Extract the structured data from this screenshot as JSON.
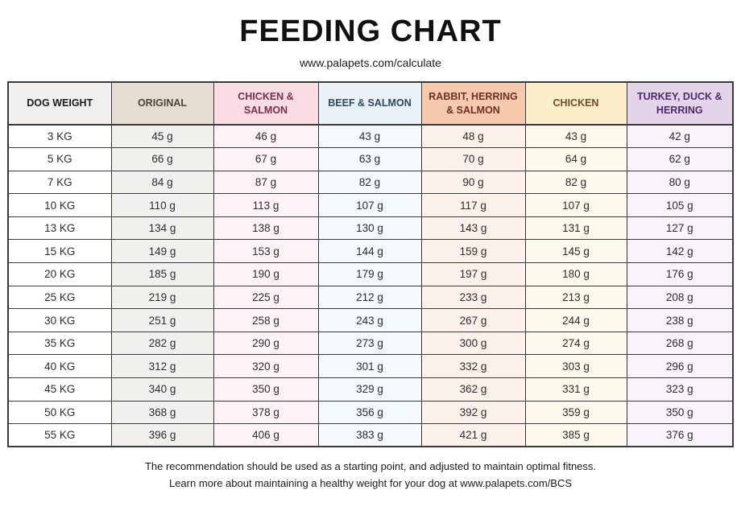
{
  "title": "FEEDING CHART",
  "subtitle": "www.palapets.com/calculate",
  "footer": {
    "line1": "The recommendation should be used as a starting point, and adjusted to maintain optimal fitness.",
    "line2": "Learn more about maintaining a healthy weight for your dog at www.palapets.com/BCS"
  },
  "chart_data": {
    "type": "table",
    "unit": "g",
    "weight_column": {
      "id": "dog-weight",
      "label": "DOG WEIGHT",
      "header_bg": "#f1f0ee",
      "header_text": "#1c1c1c",
      "cell_bg": "#ffffff"
    },
    "columns": [
      {
        "id": "original",
        "label": "ORIGINAL",
        "header_bg": "#e6ddd2",
        "header_text": "#4a443e",
        "cell_bg": "#f2f0ed"
      },
      {
        "id": "chicken-salmon",
        "label": "CHICKEN & SALMON",
        "header_bg": "#fadce5",
        "header_text": "#7c2e4e",
        "cell_bg": "#fdf3f6"
      },
      {
        "id": "beef-salmon",
        "label": "BEEF & SALMON",
        "header_bg": "#e9f1f6",
        "header_text": "#2c4a5c",
        "cell_bg": "#f4f9fb"
      },
      {
        "id": "rabbit-herring-salmon",
        "label": "RABBIT, HERRING & SALMON",
        "header_bg": "#f7caae",
        "header_text": "#6d3023",
        "cell_bg": "#fcf0ea"
      },
      {
        "id": "chicken",
        "label": "CHICKEN",
        "header_bg": "#fdedc9",
        "header_text": "#6f4c25",
        "cell_bg": "#fdf8ec"
      },
      {
        "id": "turkey-duck-herring",
        "label": "TURKEY, DUCK & HERRING",
        "header_bg": "#e4d4ea",
        "header_text": "#4f2a68",
        "cell_bg": "#f9f3fa"
      }
    ],
    "rows": [
      {
        "weight": "3 KG",
        "values": [
          45,
          46,
          43,
          48,
          43,
          42
        ]
      },
      {
        "weight": "5 KG",
        "values": [
          66,
          67,
          63,
          70,
          64,
          62
        ]
      },
      {
        "weight": "7 KG",
        "values": [
          84,
          87,
          82,
          90,
          82,
          80
        ]
      },
      {
        "weight": "10 KG",
        "values": [
          110,
          113,
          107,
          117,
          107,
          105
        ]
      },
      {
        "weight": "13 KG",
        "values": [
          134,
          138,
          130,
          143,
          131,
          127
        ]
      },
      {
        "weight": "15 KG",
        "values": [
          149,
          153,
          144,
          159,
          145,
          142
        ]
      },
      {
        "weight": "20 KG",
        "values": [
          185,
          190,
          179,
          197,
          180,
          176
        ]
      },
      {
        "weight": "25 KG",
        "values": [
          219,
          225,
          212,
          233,
          213,
          208
        ]
      },
      {
        "weight": "30 KG",
        "values": [
          251,
          258,
          243,
          267,
          244,
          238
        ]
      },
      {
        "weight": "35 KG",
        "values": [
          282,
          290,
          273,
          300,
          274,
          268
        ]
      },
      {
        "weight": "40 KG",
        "values": [
          312,
          320,
          301,
          332,
          303,
          296
        ]
      },
      {
        "weight": "45 KG",
        "values": [
          340,
          350,
          329,
          362,
          331,
          323
        ]
      },
      {
        "weight": "50 KG",
        "values": [
          368,
          378,
          356,
          392,
          359,
          350
        ]
      },
      {
        "weight": "55 KG",
        "values": [
          396,
          406,
          383,
          421,
          385,
          376
        ]
      }
    ]
  }
}
